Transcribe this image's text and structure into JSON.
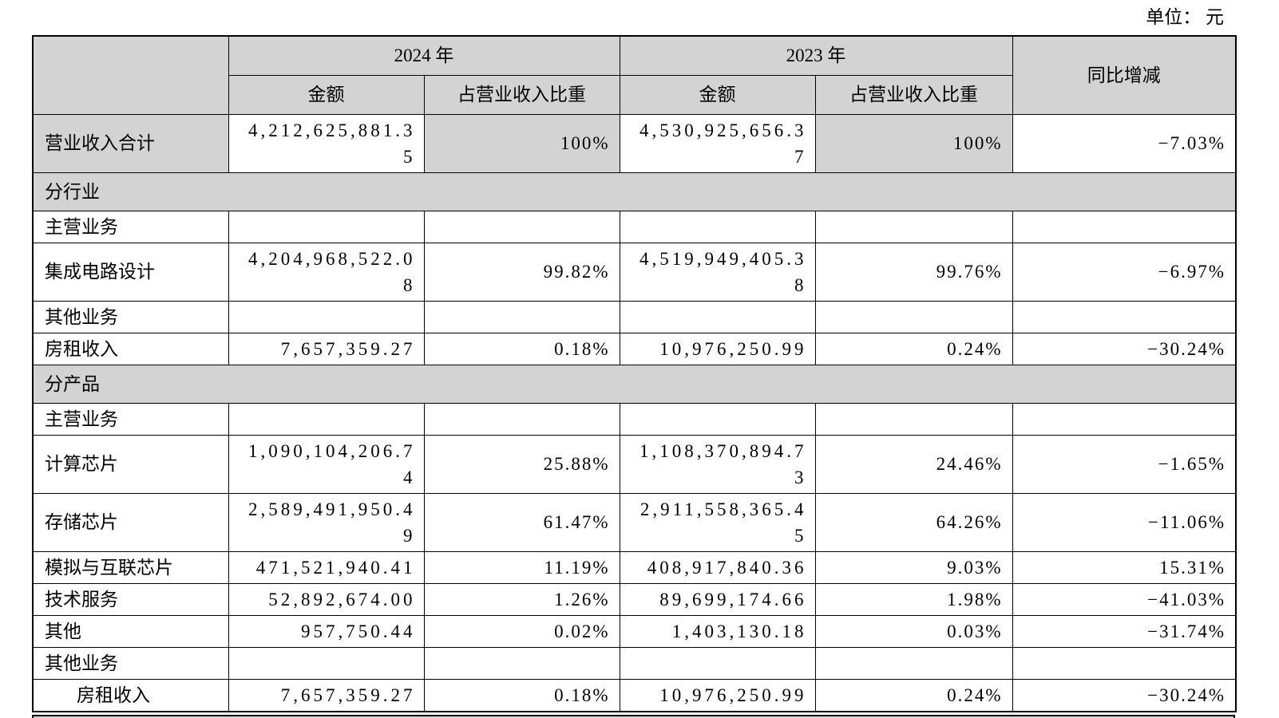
{
  "unit_label": "单位： 元",
  "table": {
    "header": {
      "year_2024": "2024 年",
      "year_2023": "2023 年",
      "amount_2024": "金额",
      "share_2024": "占营业收入比重",
      "amount_2023": "金额",
      "share_2023": "占营业收入比重",
      "yoy": "同比增减"
    },
    "rows": [
      {
        "kind": "data",
        "label": "营业收入合计",
        "cells": [
          "4,212,625,881.35",
          "100%",
          "4,530,925,656.37",
          "100%",
          "−7.03%"
        ],
        "shaded": {
          "label": true,
          "cells": [
            1,
            3
          ]
        }
      },
      {
        "kind": "section",
        "label": "分行业"
      },
      {
        "kind": "data",
        "label": "主营业务",
        "cells": [
          "",
          "",
          "",
          "",
          ""
        ]
      },
      {
        "kind": "data",
        "label": "集成电路设计",
        "cells": [
          "4,204,968,522.08",
          "99.82%",
          "4,519,949,405.38",
          "99.76%",
          "−6.97%"
        ]
      },
      {
        "kind": "data",
        "label": "其他业务",
        "cells": [
          "",
          "",
          "",
          "",
          ""
        ]
      },
      {
        "kind": "data",
        "label": "房租收入",
        "cells": [
          "7,657,359.27",
          "0.18%",
          "10,976,250.99",
          "0.24%",
          "−30.24%"
        ]
      },
      {
        "kind": "section",
        "label": "分产品"
      },
      {
        "kind": "data",
        "label": "主营业务",
        "cells": [
          "",
          "",
          "",
          "",
          ""
        ]
      },
      {
        "kind": "data",
        "label": "计算芯片",
        "cells": [
          "1,090,104,206.74",
          "25.88%",
          "1,108,370,894.73",
          "24.46%",
          "−1.65%"
        ]
      },
      {
        "kind": "data",
        "label": "存储芯片",
        "cells": [
          "2,589,491,950.49",
          "61.47%",
          "2,911,558,365.45",
          "64.26%",
          "−11.06%"
        ]
      },
      {
        "kind": "data",
        "label": "模拟与互联芯片",
        "cells": [
          "471,521,940.41",
          "11.19%",
          "408,917,840.36",
          "9.03%",
          "15.31%"
        ]
      },
      {
        "kind": "data",
        "label": "技术服务",
        "cells": [
          "52,892,674.00",
          "1.26%",
          "89,699,174.66",
          "1.98%",
          "−41.03%"
        ]
      },
      {
        "kind": "data",
        "label": "其他",
        "cells": [
          "957,750.44",
          "0.02%",
          "1,403,130.18",
          "0.03%",
          "−31.74%"
        ]
      },
      {
        "kind": "data",
        "label": "其他业务",
        "cells": [
          "",
          "",
          "",
          "",
          ""
        ]
      },
      {
        "kind": "data",
        "label": "房租收入",
        "indent": true,
        "cells": [
          "7,657,359.27",
          "0.18%",
          "10,976,250.99",
          "0.24%",
          "−30.24%"
        ]
      }
    ]
  },
  "colors": {
    "shading": "#d3d3d3",
    "border": "#000000",
    "text": "#000000"
  }
}
